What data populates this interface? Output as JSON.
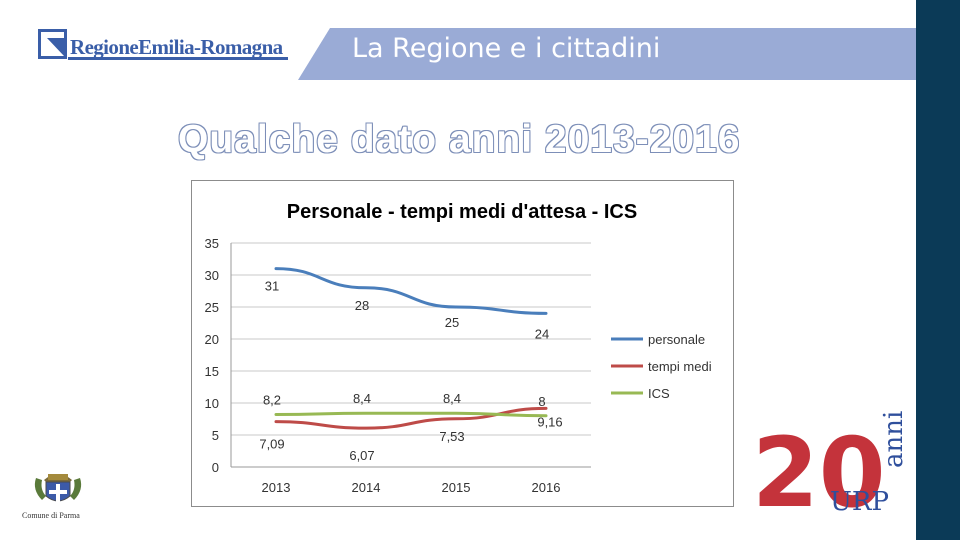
{
  "header": {
    "logo_text": "RegioneEmilia-Romagna",
    "title": "La Regione e i cittadini"
  },
  "page_title": "Qualche dato anni 2013-2016",
  "footer": {
    "crest_label": "Comune di Parma",
    "anniversary": {
      "number": "20",
      "word": "anni",
      "brand": "URP"
    }
  },
  "colors": {
    "header_band": "#9aabd6",
    "right_bar": "#0b3a57",
    "anniversary_red": "#c4333b",
    "anniversary_blue": "#2f4f9c"
  },
  "chart_data": {
    "type": "line",
    "title": "Personale - tempi medi d'attesa - ICS",
    "categories": [
      "2013",
      "2014",
      "2015",
      "2016"
    ],
    "ylim": [
      0,
      35
    ],
    "yticks": [
      0,
      5,
      10,
      15,
      20,
      25,
      30,
      35
    ],
    "grid": true,
    "legend_position": "right",
    "series": [
      {
        "name": "personale",
        "values": [
          31,
          28,
          25,
          24
        ],
        "labels": [
          "31",
          "28",
          "25",
          "24"
        ],
        "color": "#4a7ebb"
      },
      {
        "name": "tempi medi",
        "values": [
          7.09,
          6.07,
          7.53,
          9.16
        ],
        "labels": [
          "7,09",
          "6,07",
          "7,53",
          "9,16"
        ],
        "color": "#be4b48"
      },
      {
        "name": "ICS",
        "values": [
          8.2,
          8.4,
          8.4,
          8
        ],
        "labels": [
          "8,2",
          "8,4",
          "8,4",
          "8"
        ],
        "color": "#98b954"
      }
    ]
  }
}
